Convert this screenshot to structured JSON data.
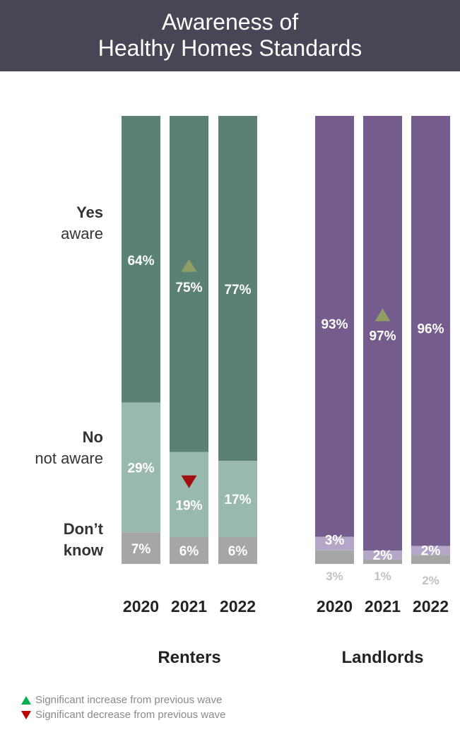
{
  "title": {
    "line1": "Awareness of",
    "line2": "Healthy Homes Standards"
  },
  "row_labels": [
    {
      "bold": "Yes",
      "sub": "aware"
    },
    {
      "bold": "No",
      "sub": "not aware"
    },
    {
      "bold": "Don’t",
      "sub": "know"
    }
  ],
  "legend": {
    "increase": "Significant increase from previous wave",
    "decrease": "Significant decrease from previous wave"
  },
  "colors": {
    "renters_yes": "#5b8074",
    "renters_no": "#99b8b0",
    "dont_know": "#a6a6a6",
    "landlords_yes": "#745c8c",
    "landlords_no": "#b4a6c7",
    "up_marker": "#8e9e64",
    "down_marker": "#a30e0e",
    "legend_up": "#00b050",
    "legend_down": "#c00000"
  },
  "chart_data": [
    {
      "type": "bar",
      "stacked": true,
      "group": "Renters",
      "categories": [
        "2020",
        "2021",
        "2022"
      ],
      "series": [
        {
          "name": "Yes aware",
          "values": [
            64,
            75,
            77
          ],
          "labels": [
            "64%",
            "75%",
            "77%"
          ],
          "markers": [
            null,
            "up",
            null
          ]
        },
        {
          "name": "No not aware",
          "values": [
            29,
            19,
            17
          ],
          "labels": [
            "29%",
            "19%",
            "17%"
          ],
          "markers": [
            null,
            "down",
            null
          ]
        },
        {
          "name": "Don’t know",
          "values": [
            7,
            6,
            6
          ],
          "labels": [
            "7%",
            "6%",
            "6%"
          ],
          "markers": [
            null,
            null,
            null
          ]
        }
      ],
      "ylim": [
        0,
        100
      ]
    },
    {
      "type": "bar",
      "stacked": true,
      "group": "Landlords",
      "categories": [
        "2020",
        "2021",
        "2022"
      ],
      "series": [
        {
          "name": "Yes aware",
          "values": [
            93,
            97,
            96
          ],
          "labels": [
            "93%",
            "97%",
            "96%"
          ],
          "markers": [
            null,
            "up",
            null
          ]
        },
        {
          "name": "No not aware",
          "values": [
            3,
            2,
            2
          ],
          "labels": [
            "3%",
            "2%",
            "2%"
          ],
          "markers": [
            null,
            null,
            null
          ]
        },
        {
          "name": "Don’t know",
          "values": [
            3,
            1,
            2
          ],
          "labels": [
            "3%",
            "1%",
            "2%"
          ],
          "markers": [
            null,
            null,
            null
          ]
        }
      ],
      "ylim": [
        0,
        100
      ]
    }
  ]
}
